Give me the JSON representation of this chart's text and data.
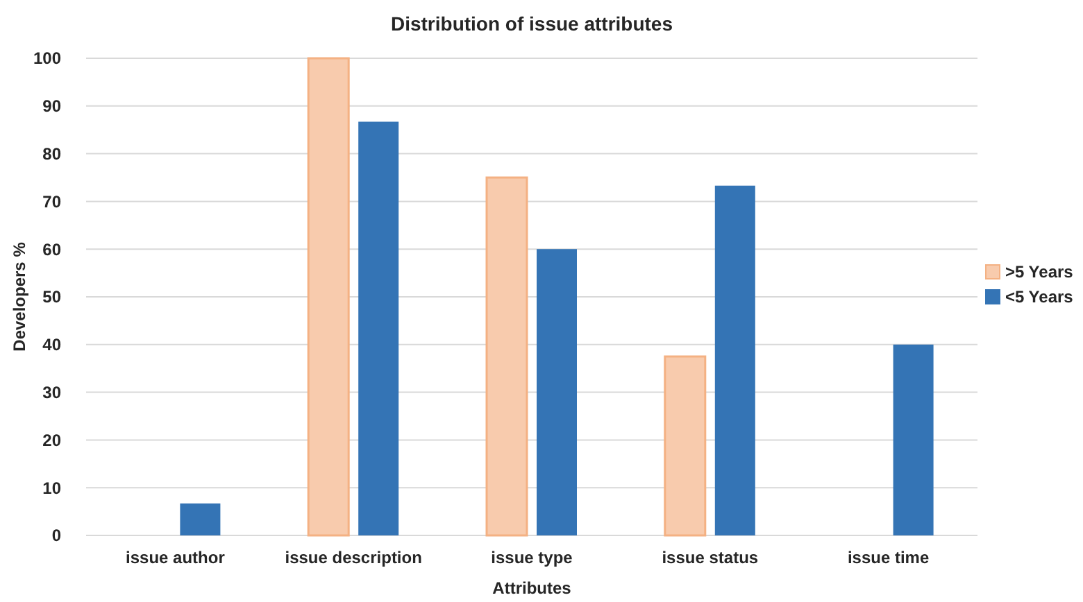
{
  "chart_data": {
    "type": "bar",
    "title": "Distribution of issue attributes",
    "xlabel": "Attributes",
    "ylabel": "Developers %",
    "categories": [
      "issue author",
      "issue description",
      "issue type",
      "issue status",
      "issue time"
    ],
    "series": [
      {
        "name": ">5 Years",
        "color": "#f8cbad",
        "values": [
          0,
          100,
          75,
          37.5,
          0
        ]
      },
      {
        "name": "<5 Years",
        "color": "#3474b5",
        "values": [
          6.7,
          86.7,
          60,
          73.3,
          40
        ]
      }
    ],
    "ylim": [
      0,
      100
    ],
    "yticks": [
      0,
      10,
      20,
      30,
      40,
      50,
      60,
      70,
      80,
      90,
      100
    ],
    "grid": "y",
    "legend": "right"
  }
}
